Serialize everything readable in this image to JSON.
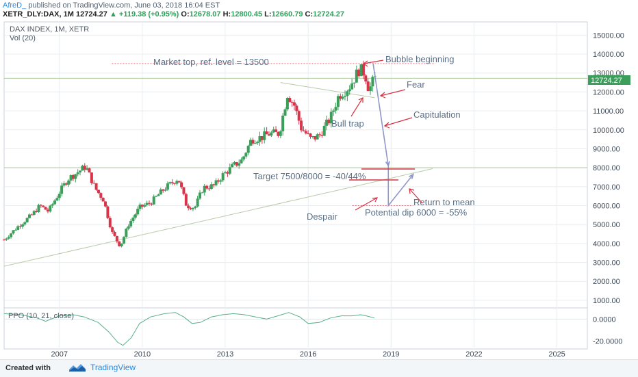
{
  "header": {
    "author": "AfreD_",
    "published": "published on TradingView.com, June 03, 2018 16:04 EST",
    "symbol": "XETR_DLY:DAX, 1M",
    "last": "12724.27",
    "change": "+119.38 (+0.95%)",
    "o_label": "O:",
    "o_value": "12678.07",
    "h_label": "H:",
    "h_value": "12800.45",
    "l_label": "L:",
    "l_value": "12660.79",
    "c_label": "C:",
    "c_value": "12724.27"
  },
  "colors": {
    "up": "#3b9e5a",
    "down": "#d8344a",
    "grid": "#e9edf0",
    "annotation_text": "#5b6f86",
    "annotation_arrow": "#d83040",
    "projection": "#8f96c8",
    "price_badge": "#3b9e5a"
  },
  "chart_data": [
    {
      "type": "candlestick",
      "title": "DAX INDEX, 1M, XETR",
      "subtitle": "Vol (20)",
      "x_ticks": [
        "2007",
        "2010",
        "2013",
        "2016",
        "2019",
        "2022",
        "2025"
      ],
      "y_ticks": [
        "1000.00",
        "2000.00",
        "3000.00",
        "4000.00",
        "5000.00",
        "6000.00",
        "7000.00",
        "8000.00",
        "9000.00",
        "10000.00",
        "11000.00",
        "12000.00",
        "13000.00",
        "14000.00",
        "15000.00"
      ],
      "ylim": [
        600,
        15700
      ],
      "xlim": [
        2005.0,
        2026.1
      ],
      "last_price": "12724.27",
      "close_path": [
        [
          2005.0,
          4200
        ],
        [
          2005.5,
          4900
        ],
        [
          2006.0,
          5500
        ],
        [
          2006.3,
          6000
        ],
        [
          2006.6,
          5700
        ],
        [
          2007.0,
          6700
        ],
        [
          2007.3,
          7400
        ],
        [
          2007.6,
          7700
        ],
        [
          2007.95,
          8070
        ],
        [
          2008.3,
          6900
        ],
        [
          2008.6,
          6300
        ],
        [
          2008.9,
          4600
        ],
        [
          2009.2,
          3850
        ],
        [
          2009.5,
          5000
        ],
        [
          2009.9,
          5900
        ],
        [
          2010.3,
          6150
        ],
        [
          2010.8,
          6900
        ],
        [
          2011.3,
          7450
        ],
        [
          2011.6,
          6000
        ],
        [
          2011.9,
          5900
        ],
        [
          2012.2,
          6950
        ],
        [
          2012.6,
          7050
        ],
        [
          2012.9,
          7600
        ],
        [
          2013.3,
          8100
        ],
        [
          2013.6,
          8400
        ],
        [
          2013.95,
          9500
        ],
        [
          2014.3,
          9600
        ],
        [
          2014.6,
          9800
        ],
        [
          2014.95,
          9800
        ],
        [
          2015.25,
          11900
        ],
        [
          2015.5,
          11300
        ],
        [
          2015.75,
          10100
        ],
        [
          2016.1,
          9500
        ],
        [
          2016.4,
          9700
        ],
        [
          2016.8,
          10600
        ],
        [
          2017.1,
          11800
        ],
        [
          2017.5,
          12300
        ],
        [
          2017.85,
          13200
        ],
        [
          2018.05,
          13000
        ],
        [
          2018.2,
          12100
        ],
        [
          2018.4,
          12724
        ]
      ],
      "volume_note": "",
      "annotations": [
        {
          "text": "Market top, ref. level = 13500"
        },
        {
          "text": "Bubble beginning"
        },
        {
          "text": "Fear"
        },
        {
          "text": "Capitulation"
        },
        {
          "text": "Bull trap"
        },
        {
          "text": "Target 7500/8000 = -40/44%"
        },
        {
          "text": "Return to mean"
        },
        {
          "text": "Despair"
        },
        {
          "text": "Potential dip 6000 = -55%"
        }
      ],
      "reference_levels": [
        13500,
        8000
      ],
      "projection": [
        [
          2018.35,
          13500
        ],
        [
          2018.9,
          8100
        ],
        [
          2018.9,
          6000
        ],
        [
          2019.8,
          7650
        ]
      ]
    },
    {
      "type": "line",
      "title": "PPO (10, 21, close)",
      "y_ticks": [
        "0.0000",
        "-20.0000"
      ],
      "ylim": [
        -26,
        9
      ],
      "points": [
        [
          2005.0,
          5
        ],
        [
          2005.6,
          4
        ],
        [
          2006.2,
          1
        ],
        [
          2006.5,
          -2
        ],
        [
          2007.0,
          3
        ],
        [
          2007.5,
          4
        ],
        [
          2007.9,
          2
        ],
        [
          2008.4,
          -3
        ],
        [
          2008.8,
          -12
        ],
        [
          2009.1,
          -21
        ],
        [
          2009.3,
          -24
        ],
        [
          2009.6,
          -17
        ],
        [
          2009.9,
          -4
        ],
        [
          2010.3,
          2
        ],
        [
          2010.8,
          5
        ],
        [
          2011.2,
          6
        ],
        [
          2011.5,
          2
        ],
        [
          2011.8,
          -4
        ],
        [
          2012.1,
          -3
        ],
        [
          2012.5,
          2
        ],
        [
          2012.9,
          4
        ],
        [
          2013.3,
          5
        ],
        [
          2013.7,
          4
        ],
        [
          2014.1,
          2
        ],
        [
          2014.5,
          0
        ],
        [
          2014.9,
          3
        ],
        [
          2015.3,
          6
        ],
        [
          2015.7,
          2
        ],
        [
          2016.0,
          -4
        ],
        [
          2016.4,
          -3
        ],
        [
          2016.8,
          1
        ],
        [
          2017.2,
          3
        ],
        [
          2017.6,
          3
        ],
        [
          2017.9,
          4
        ],
        [
          2018.1,
          3
        ],
        [
          2018.4,
          1
        ]
      ]
    }
  ]
}
